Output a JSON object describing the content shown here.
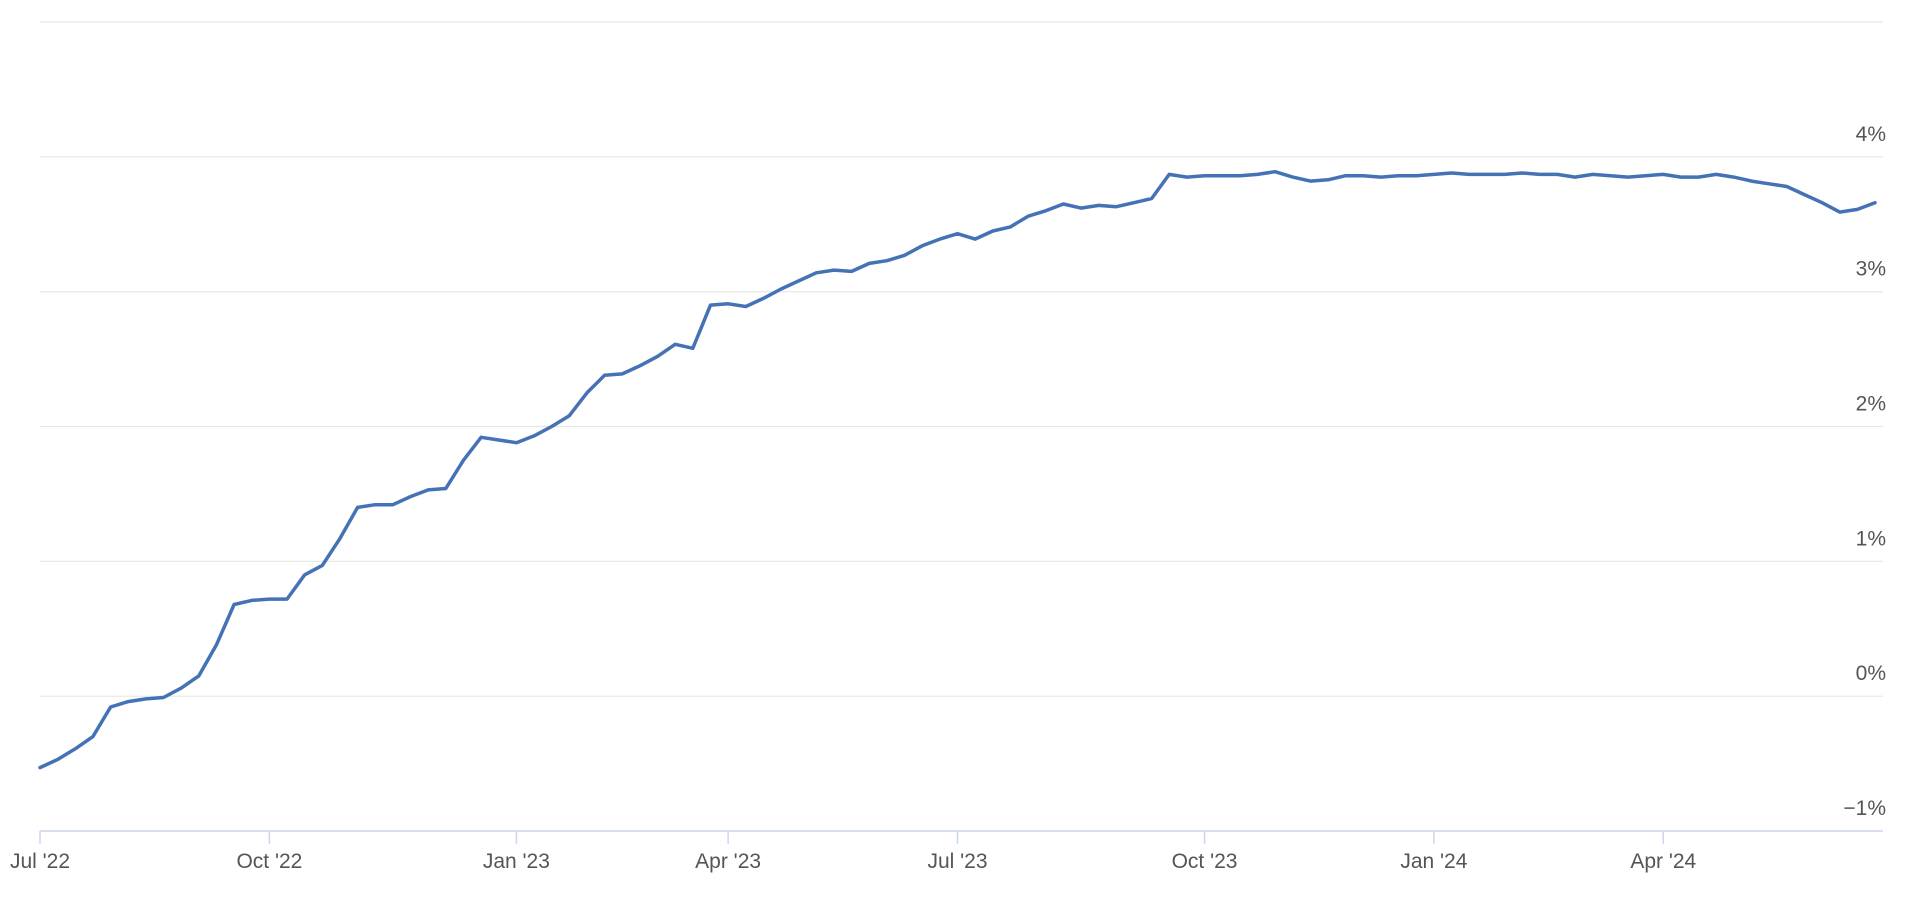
{
  "chart_data": {
    "type": "line",
    "categories": [
      "Jul '22",
      null,
      null,
      null,
      null,
      null,
      null,
      null,
      null,
      null,
      null,
      null,
      null,
      "Oct '22",
      null,
      null,
      null,
      null,
      null,
      null,
      null,
      null,
      null,
      null,
      null,
      null,
      null,
      "Jan '23",
      null,
      null,
      null,
      null,
      null,
      null,
      null,
      null,
      null,
      null,
      null,
      "Apr '23",
      null,
      null,
      null,
      null,
      null,
      null,
      null,
      null,
      null,
      null,
      null,
      null,
      "Jul '23",
      null,
      null,
      null,
      null,
      null,
      null,
      null,
      null,
      null,
      null,
      null,
      null,
      null,
      "Oct '23",
      null,
      null,
      null,
      null,
      null,
      null,
      null,
      null,
      null,
      null,
      null,
      null,
      "Jan '24",
      null,
      null,
      null,
      null,
      null,
      null,
      null,
      null,
      null,
      null,
      null,
      null,
      "Apr '24",
      null,
      null,
      null,
      null,
      null,
      null,
      null,
      null,
      null,
      null,
      null,
      null
    ],
    "values": [
      -0.53,
      -0.47,
      -0.39,
      -0.3,
      -0.08,
      -0.04,
      -0.02,
      -0.01,
      0.06,
      0.15,
      0.38,
      0.68,
      0.71,
      0.72,
      0.72,
      0.9,
      0.97,
      1.17,
      1.4,
      1.42,
      1.42,
      1.48,
      1.53,
      1.54,
      1.75,
      1.92,
      1.9,
      1.88,
      1.93,
      2.0,
      2.08,
      2.25,
      2.38,
      2.39,
      2.45,
      2.52,
      2.61,
      2.58,
      2.9,
      2.91,
      2.89,
      2.95,
      3.02,
      3.08,
      3.14,
      3.16,
      3.15,
      3.21,
      3.23,
      3.27,
      3.34,
      3.39,
      3.43,
      3.39,
      3.45,
      3.48,
      3.56,
      3.6,
      3.65,
      3.62,
      3.64,
      3.63,
      3.66,
      3.69,
      3.87,
      3.85,
      3.86,
      3.86,
      3.86,
      3.87,
      3.89,
      3.85,
      3.82,
      3.83,
      3.86,
      3.86,
      3.85,
      3.86,
      3.86,
      3.87,
      3.88,
      3.87,
      3.87,
      3.87,
      3.88,
      3.87,
      3.87,
      3.85,
      3.87,
      3.86,
      3.85,
      3.86,
      3.87,
      3.85,
      3.85,
      3.87,
      3.85,
      3.82,
      3.8,
      3.78,
      3.72,
      3.66,
      3.59,
      3.61,
      3.66
    ],
    "color": "#4572b5",
    "ylim": [
      -1,
      5
    ],
    "yticks": [
      {
        "value": -1,
        "label": "−1%"
      },
      {
        "value": 0,
        "label": "0%"
      },
      {
        "value": 1,
        "label": "1%"
      },
      {
        "value": 2,
        "label": "2%"
      },
      {
        "value": 3,
        "label": "3%"
      },
      {
        "value": 4,
        "label": "4%"
      }
    ],
    "grid": true
  }
}
